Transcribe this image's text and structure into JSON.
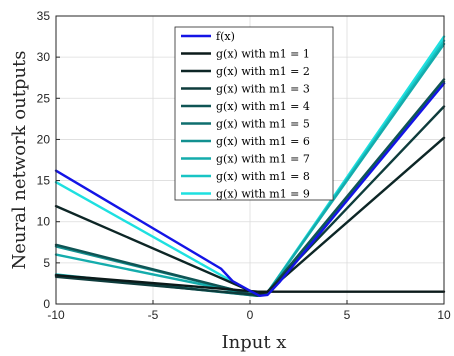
{
  "chart_data": {
    "type": "line",
    "xlabel": "Input x",
    "ylabel": "Neural network outputs",
    "xlim": [
      -10,
      10
    ],
    "ylim": [
      0,
      35
    ],
    "xticks": [
      -10,
      -5,
      0,
      5,
      10
    ],
    "yticks": [
      0,
      5,
      10,
      15,
      20,
      25,
      30,
      35
    ],
    "xtick_labels": [
      "-10",
      "-5",
      "0",
      "5",
      "10"
    ],
    "ytick_labels": [
      "0",
      "5",
      "10",
      "15",
      "20",
      "25",
      "30",
      "35"
    ],
    "grid": true,
    "legend_position": "top-center",
    "series": [
      {
        "name": "f(x)",
        "color": "#1414e6",
        "x": [
          -10,
          -1.5,
          -0.9,
          0,
          0.5,
          0.9,
          1.5,
          10
        ],
        "y": [
          16.2,
          4.3,
          2.8,
          1.6,
          1.0,
          1.1,
          2.6,
          26.8
        ]
      },
      {
        "name": "g(x) with m1 = 1",
        "color": "#0b1a1a",
        "x": [
          -10,
          0.4,
          10
        ],
        "y": [
          3.5,
          1.5,
          1.5
        ]
      },
      {
        "name": "g(x) with m1 = 2",
        "color": "#0d2626",
        "x": [
          -10,
          0.4,
          0.9,
          10
        ],
        "y": [
          11.9,
          1.2,
          1.5,
          20.2
        ]
      },
      {
        "name": "g(x) with m1 = 3",
        "color": "#0e3c3c",
        "x": [
          -10,
          0.4,
          0.9,
          10
        ],
        "y": [
          3.3,
          1.1,
          1.5,
          24.0
        ]
      },
      {
        "name": "g(x) with m1 = 4",
        "color": "#0f5454",
        "x": [
          -10,
          0.4,
          0.9,
          10
        ],
        "y": [
          7.2,
          1.0,
          1.4,
          27.3
        ]
      },
      {
        "name": "g(x) with m1 = 5",
        "color": "#0f6e6e",
        "x": [
          -10,
          0.4,
          0.9,
          10
        ],
        "y": [
          3.5,
          1.0,
          1.4,
          27.0
        ]
      },
      {
        "name": "g(x) with m1 = 6",
        "color": "#129090",
        "x": [
          -10,
          0.4,
          0.9,
          10
        ],
        "y": [
          7.0,
          1.0,
          1.4,
          26.8
        ]
      },
      {
        "name": "g(x) with m1 = 7",
        "color": "#14acac",
        "x": [
          -10,
          0.4,
          0.9,
          10
        ],
        "y": [
          6.0,
          1.0,
          1.4,
          31.6
        ]
      },
      {
        "name": "g(x) with m1 = 8",
        "color": "#18c4c4",
        "x": [
          -10,
          0.4,
          0.9,
          10
        ],
        "y": [
          3.6,
          1.0,
          1.4,
          32.0
        ]
      },
      {
        "name": "g(x) with m1 = 9",
        "color": "#1ee0e0",
        "x": [
          -10,
          0.4,
          0.9,
          10
        ],
        "y": [
          14.8,
          1.0,
          1.4,
          32.5
        ]
      }
    ]
  }
}
